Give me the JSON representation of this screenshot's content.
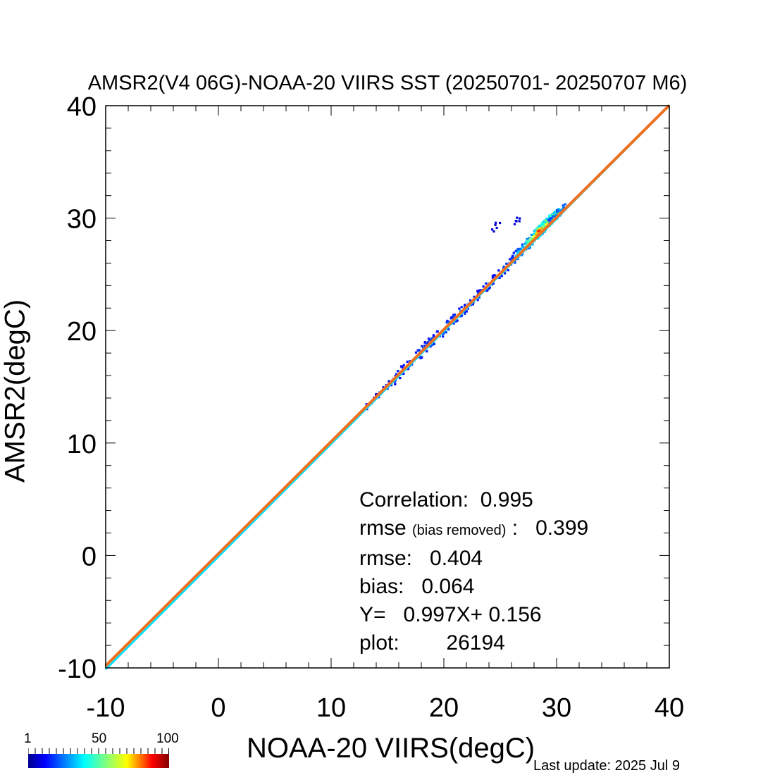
{
  "chart_data": {
    "type": "heatmap",
    "title": "AMSR2(V4 06G)-NOAA-20 VIIRS SST (20250701- 20250707 M6)",
    "xlabel": "NOAA-20 VIIRS(degC)",
    "ylabel": "AMSR2(degC)",
    "xlim": [
      -10,
      40
    ],
    "ylim": [
      -10,
      40
    ],
    "x_ticks": [
      "-10",
      "0",
      "10",
      "20",
      "30",
      "40"
    ],
    "y_ticks": [
      "-10",
      "0",
      "10",
      "20",
      "30",
      "40"
    ],
    "colorbar": {
      "ticks": [
        "1",
        "50",
        "100"
      ],
      "min": 1,
      "max": 100
    },
    "lines": [
      {
        "name": "1:1",
        "color": "#00e5ff",
        "slope": 1.0,
        "intercept": 0.0
      },
      {
        "name": "fit",
        "color": "#f07020",
        "slope": 0.997,
        "intercept": 0.156
      }
    ],
    "density_clusters": [
      {
        "x": 13.5,
        "y": 13.8,
        "spread": 0.35,
        "density": 8
      },
      {
        "x": 15.0,
        "y": 15.2,
        "spread": 0.45,
        "density": 15
      },
      {
        "x": 16.5,
        "y": 16.8,
        "spread": 0.5,
        "density": 18
      },
      {
        "x": 18.0,
        "y": 18.3,
        "spread": 0.55,
        "density": 20
      },
      {
        "x": 19.5,
        "y": 19.7,
        "spread": 0.55,
        "density": 22
      },
      {
        "x": 21.0,
        "y": 21.3,
        "spread": 0.5,
        "density": 22
      },
      {
        "x": 22.5,
        "y": 22.8,
        "spread": 0.45,
        "density": 18
      },
      {
        "x": 24.0,
        "y": 24.3,
        "spread": 0.45,
        "density": 18
      },
      {
        "x": 25.5,
        "y": 25.8,
        "spread": 0.45,
        "density": 22
      },
      {
        "x": 27.0,
        "y": 27.4,
        "spread": 0.5,
        "density": 40
      },
      {
        "x": 28.0,
        "y": 28.5,
        "spread": 0.5,
        "density": 65
      },
      {
        "x": 28.8,
        "y": 29.4,
        "spread": 0.45,
        "density": 95
      },
      {
        "x": 29.5,
        "y": 30.0,
        "spread": 0.4,
        "density": 75
      },
      {
        "x": 30.0,
        "y": 30.5,
        "spread": 0.3,
        "density": 30
      },
      {
        "x": 26.0,
        "y": 29.6,
        "spread": 0.5,
        "density": 3
      },
      {
        "x": 24.5,
        "y": 29.2,
        "spread": 0.5,
        "density": 2
      }
    ]
  },
  "stats": {
    "correlation_label": "Correlation:",
    "correlation_value": "0.995",
    "rmse_br_label": "rmse",
    "rmse_br_note": "(bias removed)",
    "rmse_br_sep": ":",
    "rmse_br_value": "0.399",
    "rmse_label": "rmse:",
    "rmse_value": "0.404",
    "bias_label": "bias:",
    "bias_value": "0.064",
    "fit_label": "Y=",
    "fit_value": "0.997X+  0.156",
    "plot_label": "plot:",
    "plot_value": "26194"
  },
  "footer": {
    "last_update": "Last update: 2025 Jul  9"
  },
  "colors": {
    "one_to_one_line": "#00e5ff",
    "fit_line": "#f07020"
  }
}
